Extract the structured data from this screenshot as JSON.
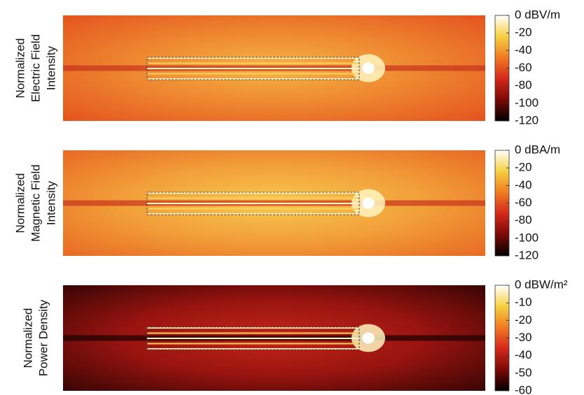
{
  "chart_data": [
    {
      "type": "heatmap",
      "ylabel": [
        "Normalized",
        "Electric Field",
        "Intensity"
      ],
      "clim": [
        -120,
        0
      ],
      "cticks": [
        {
          "value": 0,
          "label": "0 dBV/m"
        },
        -20,
        -40,
        -60,
        -80,
        -100,
        -120
      ],
      "colormap": [
        "#000000",
        "#7a0a06",
        "#d4281a",
        "#f07a22",
        "#f6d040",
        "#ffffff"
      ]
    },
    {
      "type": "heatmap",
      "ylabel": [
        "Normalized",
        "Magnetic Field",
        "Intensity"
      ],
      "clim": [
        -120,
        0
      ],
      "cticks": [
        {
          "value": 0,
          "label": "0 dBA/m"
        },
        -20,
        -40,
        -60,
        -80,
        -100,
        -120
      ],
      "colormap": [
        "#000000",
        "#7a0a06",
        "#d4281a",
        "#f07a22",
        "#f6d040",
        "#ffffff"
      ]
    },
    {
      "type": "heatmap",
      "ylabel": [
        "Normalized",
        "Power Density"
      ],
      "clim": [
        -60,
        0
      ],
      "cticks": [
        {
          "value": 0,
          "label": "0 dBW/m²"
        },
        -10,
        -20,
        -30,
        -40,
        -50,
        -60
      ],
      "colormap": [
        "#000000",
        "#7a0a06",
        "#d4281a",
        "#f07a22",
        "#f6d040",
        "#ffffff"
      ]
    }
  ]
}
